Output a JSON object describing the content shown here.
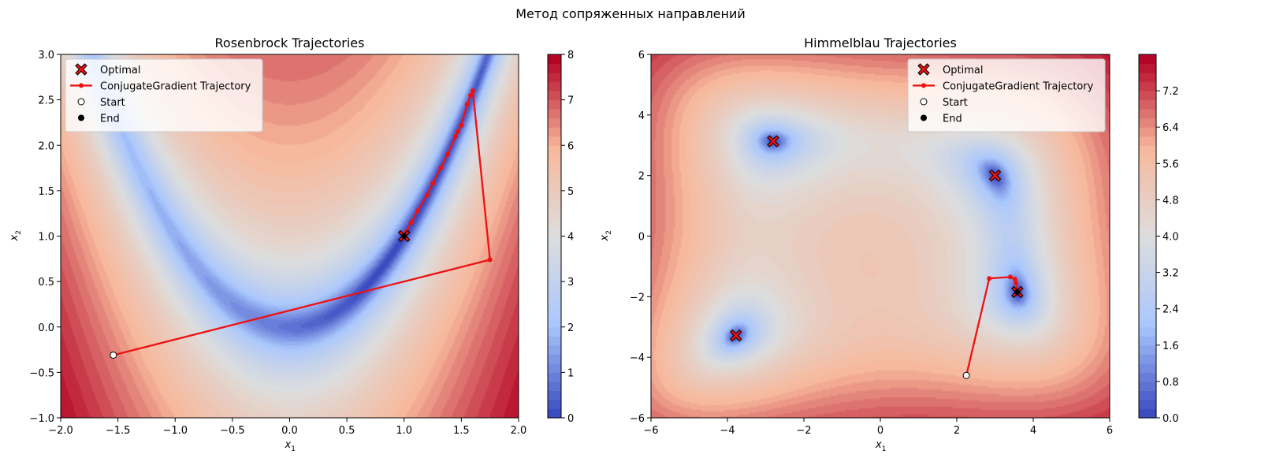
{
  "figure": {
    "suptitle": "Метод сопряженных направлений"
  },
  "chart_data": [
    {
      "type": "contour",
      "title": "Rosenbrock Trajectories",
      "xlabel": "x1",
      "ylabel": "x2",
      "xlim": [
        -2.0,
        2.0
      ],
      "ylim": [
        -1.0,
        3.0
      ],
      "xticks": [
        "−2.0",
        "−1.5",
        "−1.0",
        "−0.5",
        "0.0",
        "0.5",
        "1.0",
        "1.5",
        "2.0"
      ],
      "yticks": [
        "−1.0",
        "−0.5",
        "0.0",
        "0.5",
        "1.0",
        "1.5",
        "2.0",
        "2.5",
        "3.0"
      ],
      "colorbar": {
        "min": 0,
        "max": 8,
        "ticks": [
          "0",
          "1",
          "2",
          "3",
          "4",
          "5",
          "6",
          "7",
          "8"
        ]
      },
      "colormap": [
        "#3b4cc0",
        "#aac7fd",
        "#dddddd",
        "#f7b89c",
        "#b40426"
      ],
      "function": "rosenbrock",
      "legend": {
        "position": "top-left",
        "entries": [
          "Optimal",
          "ConjugateGradient Trajectory",
          "Start",
          "End"
        ]
      },
      "optima": [
        [
          1.0,
          1.0
        ]
      ],
      "trajectory": [
        [
          -1.54,
          -0.31
        ],
        [
          1.75,
          0.74
        ],
        [
          1.6,
          2.6
        ],
        [
          1.58,
          2.55
        ],
        [
          1.55,
          2.45
        ],
        [
          1.5,
          2.22
        ],
        [
          1.47,
          2.15
        ],
        [
          1.45,
          2.1
        ],
        [
          1.38,
          1.9
        ],
        [
          1.32,
          1.75
        ],
        [
          1.25,
          1.58
        ],
        [
          1.2,
          1.45
        ],
        [
          1.12,
          1.28
        ],
        [
          1.06,
          1.15
        ],
        [
          1.02,
          1.05
        ],
        [
          1.0,
          1.0
        ]
      ],
      "start": [
        -1.54,
        -0.31
      ],
      "end": [
        1.0,
        1.0
      ]
    },
    {
      "type": "contour",
      "title": "Himmelblau Trajectories",
      "xlabel": "x1",
      "ylabel": "x2",
      "xlim": [
        -6,
        6
      ],
      "ylim": [
        -6,
        6
      ],
      "xticks": [
        "−6",
        "−4",
        "−2",
        "0",
        "2",
        "4",
        "6"
      ],
      "yticks": [
        "−6",
        "−4",
        "−2",
        "0",
        "2",
        "4",
        "6"
      ],
      "colorbar": {
        "min": 0,
        "max": 8,
        "ticks": [
          "0.0",
          "0.8",
          "1.6",
          "2.4",
          "3.2",
          "4.0",
          "4.8",
          "5.6",
          "6.4",
          "7.2"
        ]
      },
      "colormap": [
        "#3b4cc0",
        "#aac7fd",
        "#dddddd",
        "#f7b89c",
        "#b40426"
      ],
      "function": "himmelblau",
      "legend": {
        "position": "top-right",
        "entries": [
          "Optimal",
          "ConjugateGradient Trajectory",
          "Start",
          "End"
        ]
      },
      "optima": [
        [
          3.0,
          2.0
        ],
        [
          -2.805,
          3.131
        ],
        [
          -3.779,
          -3.283
        ],
        [
          3.584,
          -1.848
        ]
      ],
      "trajectory": [
        [
          2.25,
          -4.6
        ],
        [
          2.85,
          -1.4
        ],
        [
          3.4,
          -1.35
        ],
        [
          3.52,
          -1.42
        ],
        [
          3.55,
          -1.55
        ],
        [
          3.584,
          -1.848
        ]
      ],
      "start": [
        2.25,
        -4.6
      ],
      "end": [
        3.584,
        -1.848
      ]
    }
  ]
}
